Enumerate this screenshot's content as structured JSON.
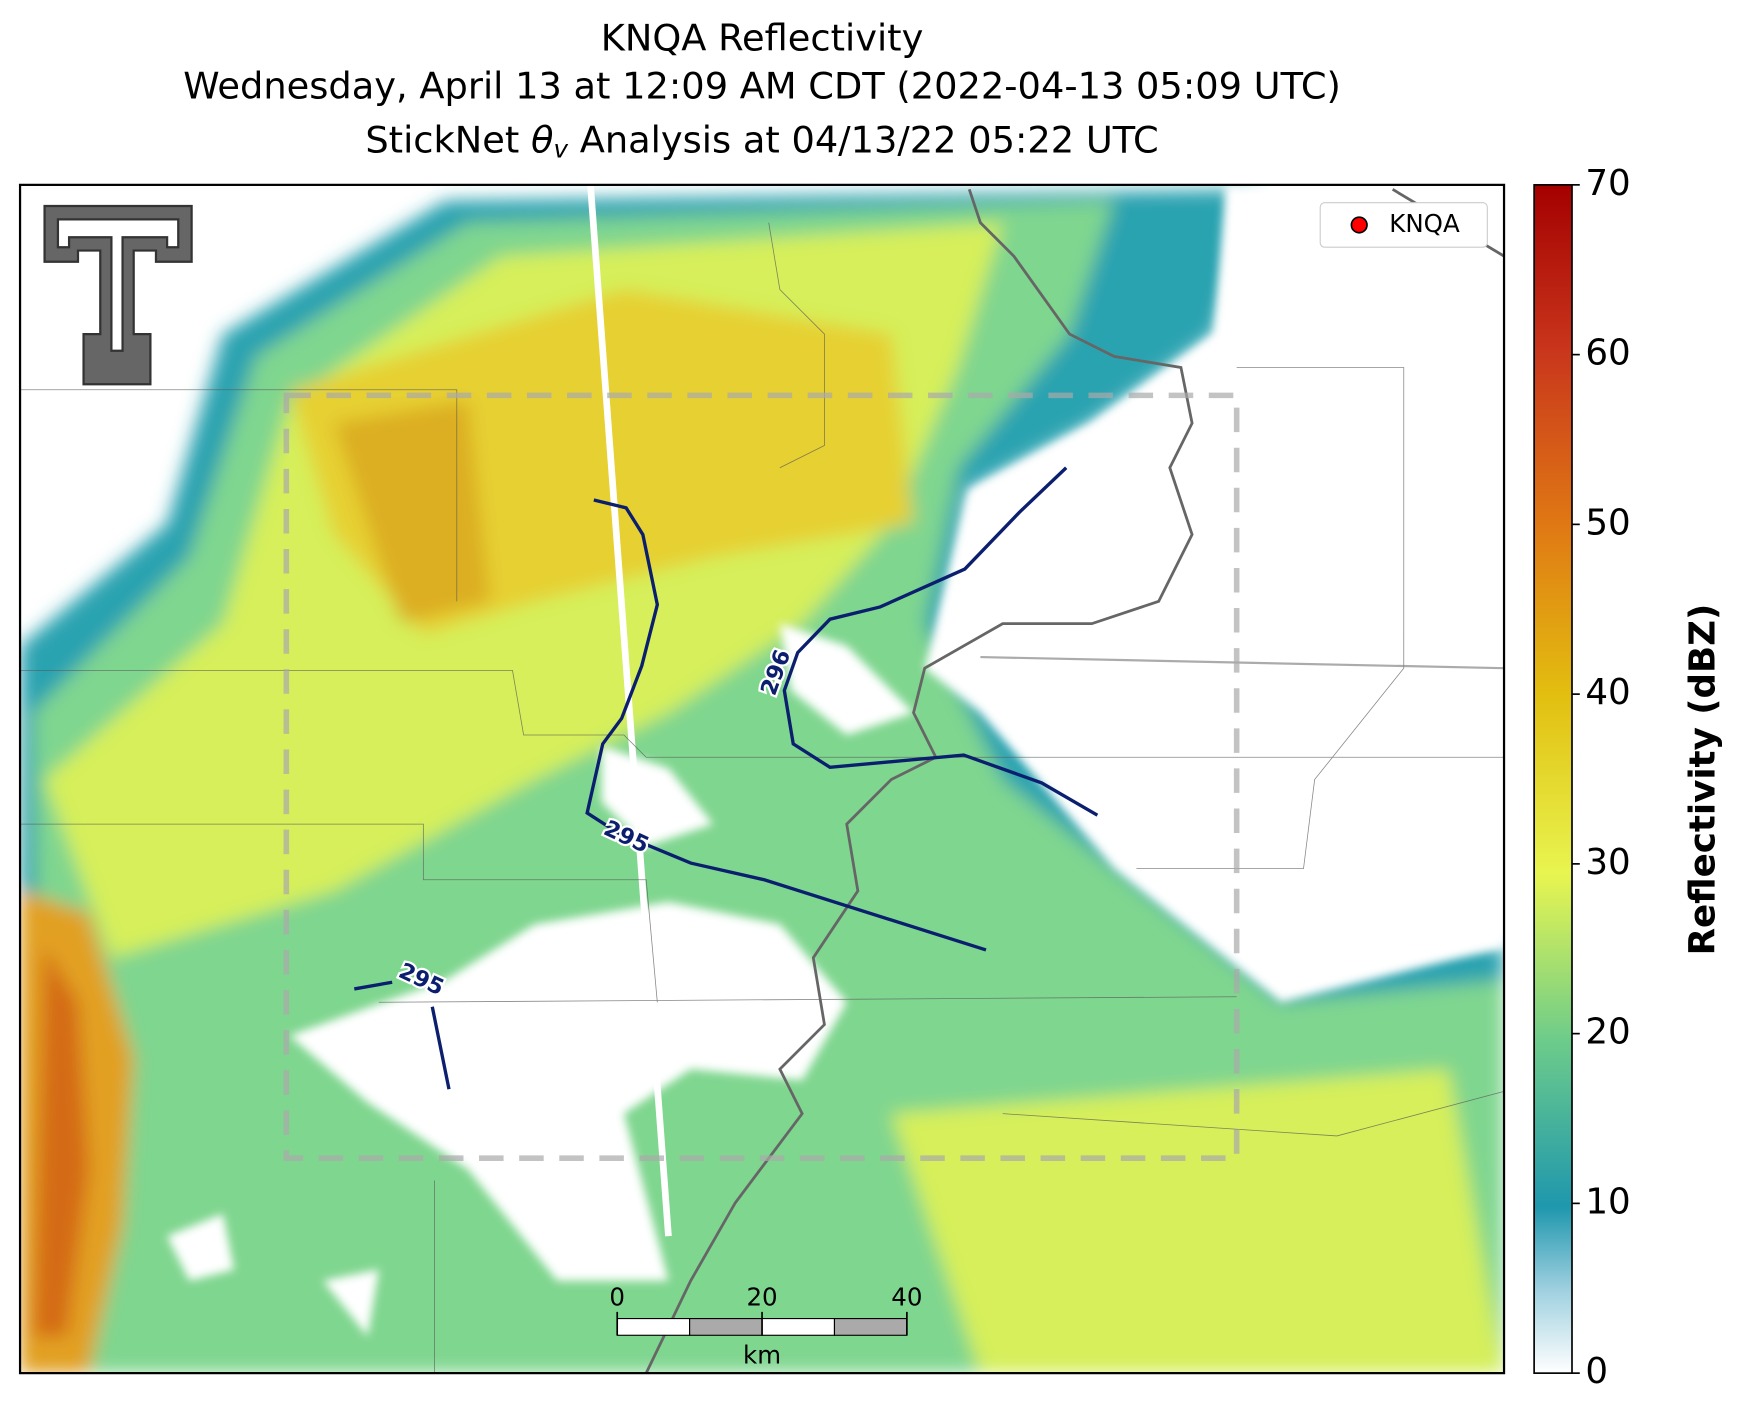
{
  "title": {
    "line1": "KNQA Reflectivity",
    "line2": "Wednesday, April 13 at 12:09 AM CDT (2022-04-13 05:09 UTC)",
    "line3": {
      "prefix": "StickNet ",
      "symbol": "θ",
      "subscript": "v",
      "suffix": " Analysis at 04/13/22 05:22 UTC"
    }
  },
  "legend": {
    "label": "KNQA",
    "color": "#ff0000"
  },
  "contours": [
    {
      "label": 295
    },
    {
      "label": 296
    },
    {
      "label": 295
    }
  ],
  "colorbar": {
    "label": "Reflectivity (dBZ)",
    "lim": [
      0,
      70
    ],
    "ticks": [
      0,
      10,
      20,
      30,
      40,
      50,
      60,
      70
    ]
  },
  "scale_bar": {
    "ticks": [
      0,
      20,
      40
    ],
    "unit": "km"
  }
}
